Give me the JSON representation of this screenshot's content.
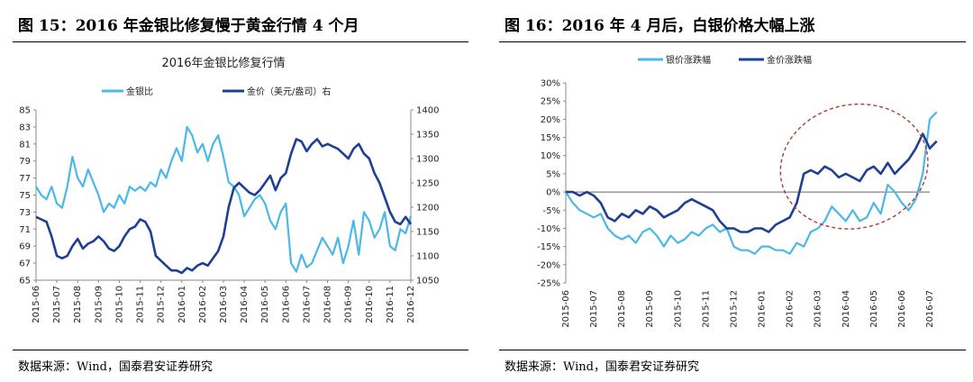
{
  "figures": [
    {
      "label": "图 15：2016 年金银比修复慢于黄金行情 4 个月",
      "source": "数据来源：Wind，国泰君安证券研究"
    },
    {
      "label": "图 16：2016 年 4 月后，白银价格大幅上涨",
      "source": "数据来源：Wind，国泰君安证券研究"
    }
  ],
  "colors": {
    "light": "#4BB8E6",
    "dark": "#1F3F95",
    "ellipse": "#B03A32"
  },
  "chart_data": [
    {
      "type": "line",
      "title": "2016年金银比修复行情",
      "x_tick_labels": [
        "2015-06",
        "2015-07",
        "2015-08",
        "2015-09",
        "2015-10",
        "2015-11",
        "2015-12",
        "2016-01",
        "2016-02",
        "2016-03",
        "2016-04",
        "2016-05",
        "2016-06",
        "2016-07",
        "2016-08",
        "2016-09",
        "2016-10",
        "2016-11",
        "2016-12"
      ],
      "y_left": {
        "ticks": [
          65,
          67,
          69,
          71,
          73,
          75,
          77,
          79,
          81,
          83,
          85
        ],
        "range": [
          65,
          85
        ]
      },
      "y_right": {
        "ticks": [
          1050,
          1100,
          1150,
          1200,
          1250,
          1300,
          1350,
          1400
        ],
        "range": [
          1050,
          1400
        ]
      },
      "legend_position": "top",
      "series": [
        {
          "name": "金银比",
          "axis": "left",
          "color": "#4BB8E6",
          "x": [
            0,
            0.25,
            0.5,
            0.75,
            1,
            1.25,
            1.5,
            1.75,
            2,
            2.25,
            2.5,
            2.75,
            3,
            3.25,
            3.5,
            3.75,
            4,
            4.25,
            4.5,
            4.75,
            5,
            5.25,
            5.5,
            5.75,
            6,
            6.25,
            6.5,
            6.75,
            7,
            7.25,
            7.5,
            7.75,
            8,
            8.25,
            8.5,
            8.75,
            9,
            9.25,
            9.5,
            9.75,
            10,
            10.25,
            10.5,
            10.75,
            11,
            11.25,
            11.5,
            11.75,
            12,
            12.25,
            12.5,
            12.75,
            13,
            13.25,
            13.5,
            13.75,
            14,
            14.25,
            14.5,
            14.75,
            15,
            15.25,
            15.5,
            15.75,
            16,
            16.25,
            16.5,
            16.75,
            17,
            17.25,
            17.5,
            17.75,
            18
          ],
          "values": [
            76,
            75,
            74.5,
            76,
            74,
            73.5,
            76,
            79.5,
            77,
            76,
            78,
            76.5,
            75,
            73,
            74,
            73.5,
            75,
            74,
            76,
            75.5,
            76,
            75.5,
            76.5,
            76,
            78,
            77,
            79,
            80.5,
            79,
            83,
            82,
            80,
            81,
            79,
            81,
            82,
            79.5,
            76.5,
            76,
            75,
            72.5,
            73.5,
            74.5,
            75,
            74,
            72,
            71,
            73,
            74,
            67,
            66,
            68,
            66.5,
            67,
            68.5,
            70,
            69,
            68,
            70,
            67,
            69,
            72,
            68,
            73,
            72,
            70,
            71,
            73,
            69,
            68.5,
            71,
            70.5,
            72.5
          ]
        },
        {
          "name": "金价（美元/盎司）右",
          "axis": "right",
          "color": "#1F3F95",
          "x": [
            0,
            0.25,
            0.5,
            0.75,
            1,
            1.25,
            1.5,
            1.75,
            2,
            2.25,
            2.5,
            2.75,
            3,
            3.25,
            3.5,
            3.75,
            4,
            4.25,
            4.5,
            4.75,
            5,
            5.25,
            5.5,
            5.75,
            6,
            6.25,
            6.5,
            6.75,
            7,
            7.25,
            7.5,
            7.75,
            8,
            8.25,
            8.5,
            8.75,
            9,
            9.25,
            9.5,
            9.75,
            10,
            10.25,
            10.5,
            10.75,
            11,
            11.25,
            11.5,
            11.75,
            12,
            12.25,
            12.5,
            12.75,
            13,
            13.25,
            13.5,
            13.75,
            14,
            14.25,
            14.5,
            14.75,
            15,
            15.25,
            15.5,
            15.75,
            16,
            16.25,
            16.5,
            16.75,
            17,
            17.25,
            17.5,
            17.75,
            18
          ],
          "values": [
            1180,
            1175,
            1170,
            1140,
            1100,
            1095,
            1100,
            1120,
            1135,
            1115,
            1125,
            1130,
            1140,
            1130,
            1115,
            1110,
            1120,
            1140,
            1155,
            1160,
            1175,
            1170,
            1150,
            1100,
            1090,
            1080,
            1070,
            1070,
            1065,
            1075,
            1070,
            1080,
            1085,
            1080,
            1095,
            1110,
            1140,
            1200,
            1240,
            1250,
            1240,
            1230,
            1225,
            1235,
            1250,
            1265,
            1235,
            1260,
            1270,
            1310,
            1340,
            1335,
            1315,
            1330,
            1340,
            1325,
            1330,
            1325,
            1320,
            1310,
            1300,
            1320,
            1330,
            1310,
            1300,
            1270,
            1250,
            1220,
            1190,
            1170,
            1165,
            1180,
            1165
          ]
        }
      ]
    },
    {
      "type": "line",
      "title": "",
      "x_tick_labels": [
        "2015-06",
        "2015-07",
        "2015-08",
        "2015-09",
        "2015-10",
        "2015-11",
        "2015-12",
        "2016-01",
        "2016-02",
        "2016-03",
        "2016-04",
        "2016-05",
        "2016-06",
        "2016-07"
      ],
      "y_ticks": [
        "30%",
        "25%",
        "20%",
        "15%",
        "10%",
        "5%",
        "0%",
        "-5%",
        "-10%",
        "-15%",
        "-20%",
        "-25%"
      ],
      "y_range": [
        -25,
        30
      ],
      "legend_position": "top",
      "annotation": "dashed ellipse highlighting Feb–Jul 2016",
      "series": [
        {
          "name": "银价涨跌幅",
          "color": "#4BB8E6",
          "x": [
            0,
            0.25,
            0.5,
            0.75,
            1,
            1.25,
            1.5,
            1.75,
            2,
            2.25,
            2.5,
            2.75,
            3,
            3.25,
            3.5,
            3.75,
            4,
            4.25,
            4.5,
            4.75,
            5,
            5.25,
            5.5,
            5.75,
            6,
            6.25,
            6.5,
            6.75,
            7,
            7.25,
            7.5,
            7.75,
            8,
            8.25,
            8.5,
            8.75,
            9,
            9.25,
            9.5,
            9.75,
            10,
            10.25,
            10.5,
            10.75,
            11,
            11.25,
            11.5,
            11.75,
            12,
            12.25,
            12.5,
            12.75,
            13,
            13.25
          ],
          "values": [
            0,
            -3,
            -5,
            -6,
            -7,
            -6,
            -10,
            -12,
            -13,
            -12,
            -14,
            -11,
            -10,
            -12,
            -15,
            -12,
            -14,
            -13,
            -11,
            -12,
            -10,
            -9,
            -11,
            -10,
            -15,
            -16,
            -16,
            -17,
            -15,
            -15,
            -16,
            -16,
            -17,
            -14,
            -15,
            -11,
            -10,
            -8,
            -4,
            -6,
            -8,
            -5,
            -8,
            -7,
            -3,
            -6,
            2,
            0,
            -3,
            -5,
            -2,
            5,
            20,
            22
          ]
        },
        {
          "name": "金价涨跌幅",
          "color": "#1F3F95",
          "x": [
            0,
            0.25,
            0.5,
            0.75,
            1,
            1.25,
            1.5,
            1.75,
            2,
            2.25,
            2.5,
            2.75,
            3,
            3.25,
            3.5,
            3.75,
            4,
            4.25,
            4.5,
            4.75,
            5,
            5.25,
            5.5,
            5.75,
            6,
            6.25,
            6.5,
            6.75,
            7,
            7.25,
            7.5,
            7.75,
            8,
            8.25,
            8.5,
            8.75,
            9,
            9.25,
            9.5,
            9.75,
            10,
            10.25,
            10.5,
            10.75,
            11,
            11.25,
            11.5,
            11.75,
            12,
            12.25,
            12.5,
            12.75,
            13,
            13.25
          ],
          "values": [
            0,
            0,
            -1,
            0,
            -1,
            -3,
            -7,
            -8,
            -6,
            -7,
            -5,
            -6,
            -4,
            -5,
            -7,
            -6,
            -5,
            -3,
            -2,
            -3,
            -4,
            -5,
            -8,
            -10,
            -10,
            -11,
            -11,
            -10,
            -10,
            -11,
            -9,
            -8,
            -7,
            -3,
            5,
            6,
            5,
            7,
            6,
            4,
            5,
            4,
            3,
            6,
            7,
            5,
            8,
            5,
            7,
            9,
            12,
            16,
            12,
            14
          ]
        }
      ]
    }
  ]
}
